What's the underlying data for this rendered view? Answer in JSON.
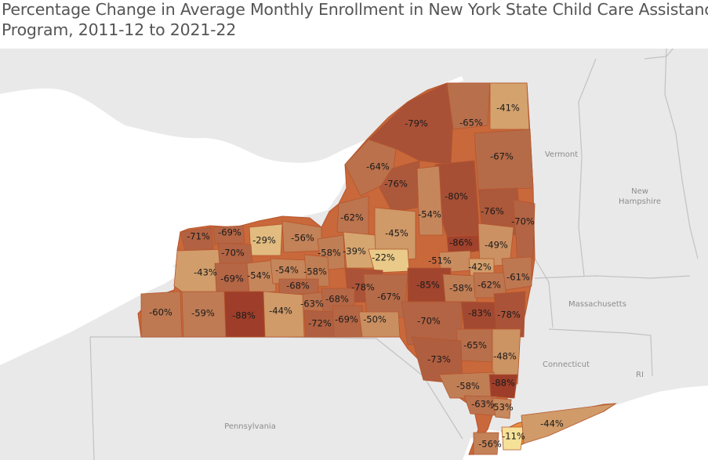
{
  "title": {
    "line1": "Percentage Change in Average Monthly Enrollment in New York State Child Care Assistance",
    "line2": "Program, 2011-12 to 2021-22"
  },
  "places": {
    "vermont": "Vermont",
    "new_hampshire_1": "New",
    "new_hampshire_2": "Hampshire",
    "massachusetts": "Massachusetts",
    "connecticut": "Connecticut",
    "rhode_island": "RI",
    "pennsylvania": "Pennsylvania"
  },
  "colors": {
    "water": "#ffffff",
    "land": "#e9e9e9",
    "state_border": "#c4c4c4",
    "ny_fill": "#c9683b",
    "county_border": "#b5552c",
    "scale_low": "#f7e39a",
    "scale_high": "#9c3a27"
  },
  "counties": [
    {
      "label": "-79%",
      "value": -79
    },
    {
      "label": "-65%",
      "value": -65
    },
    {
      "label": "-41%",
      "value": -41
    },
    {
      "label": "-67%",
      "value": -67
    },
    {
      "label": "-64%",
      "value": -64
    },
    {
      "label": "-76%",
      "value": -76
    },
    {
      "label": "-80%",
      "value": -80
    },
    {
      "label": "-76%",
      "value": -76
    },
    {
      "label": "-70%",
      "value": -70
    },
    {
      "label": "-62%",
      "value": -62
    },
    {
      "label": "-54%",
      "value": -54
    },
    {
      "label": "-45%",
      "value": -45
    },
    {
      "label": "-86%",
      "value": -86
    },
    {
      "label": "-49%",
      "value": -49
    },
    {
      "label": "-71%",
      "value": -71
    },
    {
      "label": "-69%",
      "value": -69
    },
    {
      "label": "-29%",
      "value": -29
    },
    {
      "label": "-56%",
      "value": -56
    },
    {
      "label": "-58%",
      "value": -58
    },
    {
      "label": "-39%",
      "value": -39
    },
    {
      "label": "-22%",
      "value": -22
    },
    {
      "label": "-51%",
      "value": -51
    },
    {
      "label": "-42%",
      "value": -42
    },
    {
      "label": "-43%",
      "value": -43
    },
    {
      "label": "-70%",
      "value": -70
    },
    {
      "label": "-69%",
      "value": -69
    },
    {
      "label": "-54%",
      "value": -54
    },
    {
      "label": "-54%",
      "value": -54
    },
    {
      "label": "-58%",
      "value": -58
    },
    {
      "label": "-68%",
      "value": -68
    },
    {
      "label": "-78%",
      "value": -78
    },
    {
      "label": "-85%",
      "value": -85
    },
    {
      "label": "-58%",
      "value": -58
    },
    {
      "label": "-62%",
      "value": -62
    },
    {
      "label": "-61%",
      "value": -61
    },
    {
      "label": "-63%",
      "value": -63
    },
    {
      "label": "-68%",
      "value": -68
    },
    {
      "label": "-67%",
      "value": -67
    },
    {
      "label": "-60%",
      "value": -60
    },
    {
      "label": "-59%",
      "value": -59
    },
    {
      "label": "-88%",
      "value": -88
    },
    {
      "label": "-44%",
      "value": -44
    },
    {
      "label": "-72%",
      "value": -72
    },
    {
      "label": "-69%",
      "value": -69
    },
    {
      "label": "-50%",
      "value": -50
    },
    {
      "label": "-70%",
      "value": -70
    },
    {
      "label": "-83%",
      "value": -83
    },
    {
      "label": "-78%",
      "value": -78
    },
    {
      "label": "-65%",
      "value": -65
    },
    {
      "label": "-48%",
      "value": -48
    },
    {
      "label": "-73%",
      "value": -73
    },
    {
      "label": "-58%",
      "value": -58
    },
    {
      "label": "-88%",
      "value": -88
    },
    {
      "label": "-63%",
      "value": -63
    },
    {
      "label": "-53%",
      "value": -53
    },
    {
      "label": "-11%",
      "value": -11
    },
    {
      "label": "-44%",
      "value": -44
    },
    {
      "label": "-56%",
      "value": -56
    }
  ]
}
